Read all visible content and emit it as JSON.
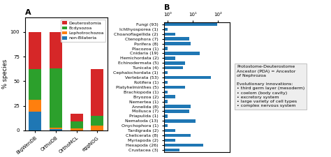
{
  "chart_data": [
    {
      "type": "bar",
      "title": "A",
      "categories": [
        "BigWenDB",
        "OrthoDB",
        "OrthoMCL",
        "eggNOG"
      ],
      "series": [
        {
          "name": "non-Bilateria",
          "values": [
            19,
            1,
            0,
            0
          ]
        },
        {
          "name": "Lophotrochozoa",
          "values": [
            12,
            2,
            2,
            5
          ]
        },
        {
          "name": "Ecdysozoa",
          "values": [
            31,
            60,
            7,
            10
          ]
        },
        {
          "name": "Deuterostomia",
          "values": [
            38,
            37,
            8,
            47
          ]
        }
      ],
      "stacked": true,
      "ylabel": "% species",
      "ylim": [
        0,
        115
      ],
      "yticks": [
        0,
        25,
        50,
        75,
        100
      ],
      "legend": "upper right"
    },
    {
      "type": "bar",
      "title": "B",
      "orientation": "horizontal",
      "log": "x",
      "categories": [
        "Fungi (93)",
        "Ichthyosporea (1)",
        "Choanoflagellida (2)",
        "Ctenophora (7)",
        "Porifera (8)",
        "Placozoa (1)",
        "Cnidaria (19)",
        "Hemichordata (2)",
        "Echinodermata (5)",
        "Tunicata (4)",
        "Cephalochordata (1)",
        "Vertebrata (53)",
        "Rotifera (1)",
        "Platyhelminthes (5)",
        "Brachiopoda (1)",
        "Bryozoa (2)",
        "Nemertea (1)",
        "Annelida (8)",
        "Mollusca (7)",
        "Priapulida (1)",
        "Nematoda (13)",
        "Onychophora (1)",
        "Tardigrada (2)",
        "Chelicerata (8)",
        "Myriapoda (2)",
        "Hexapoda (26)",
        "Crustacea (3)"
      ],
      "values": [
        93,
        1,
        2,
        7,
        8,
        1,
        19,
        2,
        5,
        4,
        1,
        53,
        1,
        5,
        1,
        2,
        1,
        8,
        7,
        1,
        13,
        1,
        2,
        8,
        2,
        26,
        3
      ],
      "xlim": [
        0.7,
        300
      ],
      "xticks": [
        {
          "value": 1,
          "label": "10⁰"
        },
        {
          "value": 10,
          "label": "10¹"
        },
        {
          "value": 100,
          "label": "10²"
        }
      ],
      "annotation": "Protostome-Deuterostome\nAncestor (PDA) = Ancestor\nof Nephrozoa\n\nEvolutionary innovations:\n• third germ layer (mesoderm)\n• coelom (body cavity)\n• excretory system\n• large variety of cell types\n• complex nervous system"
    }
  ]
}
